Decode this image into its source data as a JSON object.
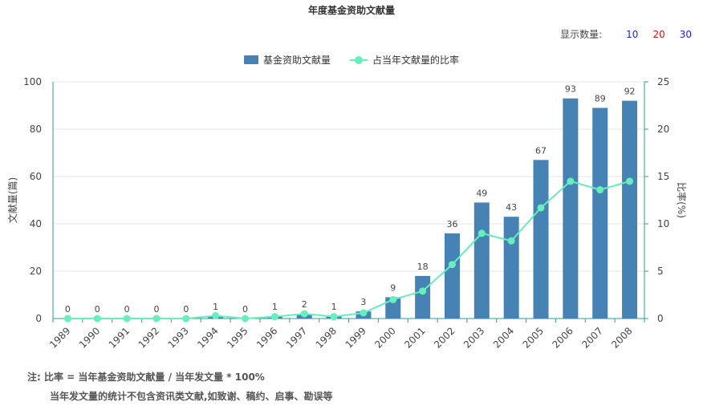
{
  "title": "年度基金资助文献量",
  "count_selector": {
    "label": "显示数量:",
    "options": [
      {
        "label": "10",
        "color": "#1a1aff"
      },
      {
        "label": "20",
        "color": "#dd1111"
      },
      {
        "label": "30",
        "color": "#1a1aff"
      }
    ]
  },
  "colors": {
    "bar": "#4682b4",
    "line": "#66eebb",
    "axis": "#2a9d9d",
    "grid": "#e4e4e4"
  },
  "notes": {
    "line1": "注: 比率 = 当年基金资助文献量 / 当年发文量 * 100%",
    "line2": "当年发文量的统计不包含资讯类文献,如致谢、稿约、启事、勘误等"
  },
  "chart_data": {
    "type": "bar",
    "title": "年度基金资助文献量",
    "categories": [
      "1989",
      "1990",
      "1991",
      "1992",
      "1993",
      "1994",
      "1995",
      "1996",
      "1997",
      "1998",
      "1999",
      "2000",
      "2001",
      "2002",
      "2003",
      "2004",
      "2005",
      "2006",
      "2007",
      "2008"
    ],
    "series": [
      {
        "name": "基金资助文献量",
        "type": "bar",
        "axis": "left",
        "values": [
          0,
          0,
          0,
          0,
          0,
          1,
          0,
          1,
          2,
          1,
          3,
          9,
          18,
          36,
          49,
          43,
          67,
          93,
          89,
          92
        ],
        "labels": [
          "0",
          "0",
          "0",
          "0",
          "0",
          "1",
          "0",
          "1",
          "2",
          "1",
          "3",
          "9",
          "18",
          "36",
          "49",
          "43",
          "67",
          "93",
          "89",
          "92"
        ]
      },
      {
        "name": "占当年文献量的比率",
        "type": "line",
        "axis": "right",
        "values": [
          0,
          0,
          0,
          0,
          0,
          0.3,
          0,
          0.2,
          0.5,
          0.2,
          0.6,
          2.0,
          2.9,
          5.7,
          9.0,
          8.2,
          11.7,
          14.5,
          13.6,
          14.5
        ]
      }
    ],
    "ylabel": "文献量(篇)",
    "ylabel_right": "比率(%)",
    "ylim": [
      0,
      100
    ],
    "yticks": [
      "0",
      "20",
      "40",
      "60",
      "80",
      "100"
    ],
    "ylim_right": [
      0,
      25
    ],
    "yticks_right": [
      "0",
      "5",
      "10",
      "15",
      "20",
      "25"
    ],
    "grid": true,
    "legend": "top-center"
  }
}
